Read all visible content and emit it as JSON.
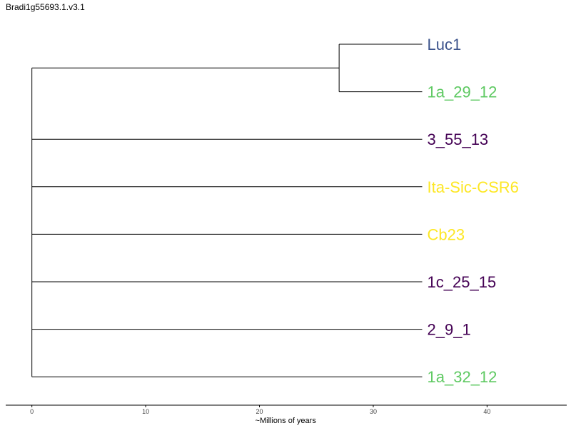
{
  "title": "Bradi1g55693.1.v3.1",
  "chart_data": {
    "type": "dendrogram",
    "xlabel": "~Millions of years",
    "xlim": [
      -2.3,
      47
    ],
    "ticks": [
      0,
      10,
      20,
      30,
      40
    ],
    "root_age": 0,
    "leaf_age": 34.3,
    "leaves": [
      {
        "name": "Luc1",
        "color": "#3b528b"
      },
      {
        "name": "1a_29_12",
        "color": "#5ec962"
      },
      {
        "name": "3_55_13",
        "color": "#440154"
      },
      {
        "name": "Ita-Sic-CSR6",
        "color": "#fde725"
      },
      {
        "name": "Cb23",
        "color": "#fde725"
      },
      {
        "name": "1c_25_15",
        "color": "#440154"
      },
      {
        "name": "2_9_1",
        "color": "#440154"
      },
      {
        "name": "1a_32_12",
        "color": "#5ec962"
      }
    ],
    "clades": [
      {
        "members": [
          0,
          1
        ],
        "age": 27
      }
    ]
  }
}
